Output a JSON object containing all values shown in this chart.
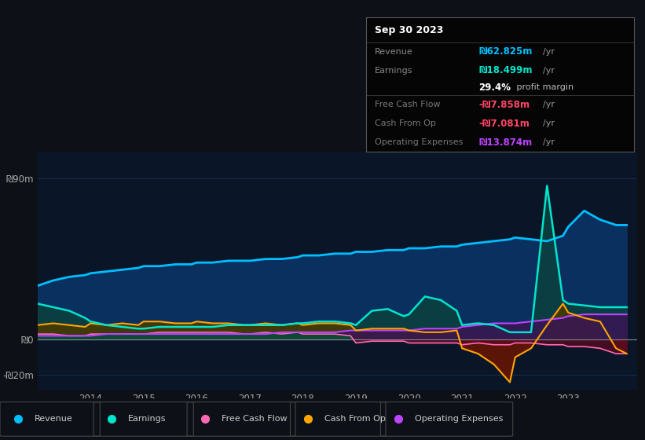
{
  "bg_color": "#0d1117",
  "chart_bg": "#0a1628",
  "title": "Sep 30 2023",
  "yticks_labels": [
    "₪90m",
    "₪0",
    "-₪20m"
  ],
  "ytick_values": [
    90,
    0,
    -20
  ],
  "ylim": [
    -28,
    105
  ],
  "xlim_start": 2013.0,
  "xlim_end": 2024.3,
  "xtick_labels": [
    "2014",
    "2015",
    "2016",
    "2017",
    "2018",
    "2019",
    "2020",
    "2021",
    "2022",
    "2023"
  ],
  "xtick_positions": [
    2014,
    2015,
    2016,
    2017,
    2018,
    2019,
    2020,
    2021,
    2022,
    2023
  ],
  "legend_items": [
    {
      "label": "Revenue",
      "color": "#00bfff"
    },
    {
      "label": "Earnings",
      "color": "#00e5cc"
    },
    {
      "label": "Free Cash Flow",
      "color": "#ff69b4"
    },
    {
      "label": "Cash From Op",
      "color": "#ffa500"
    },
    {
      "label": "Operating Expenses",
      "color": "#bb44ff"
    }
  ],
  "revenue_x": [
    2013.0,
    2013.3,
    2013.6,
    2013.9,
    2014.0,
    2014.3,
    2014.6,
    2014.9,
    2015.0,
    2015.3,
    2015.6,
    2015.9,
    2016.0,
    2016.3,
    2016.6,
    2016.9,
    2017.0,
    2017.3,
    2017.6,
    2017.9,
    2018.0,
    2018.3,
    2018.6,
    2018.9,
    2019.0,
    2019.3,
    2019.6,
    2019.9,
    2020.0,
    2020.3,
    2020.6,
    2020.9,
    2021.0,
    2021.3,
    2021.6,
    2021.9,
    2022.0,
    2022.3,
    2022.6,
    2022.9,
    2023.0,
    2023.3,
    2023.6,
    2023.9,
    2024.1
  ],
  "revenue_y": [
    30,
    33,
    35,
    36,
    37,
    38,
    39,
    40,
    41,
    41,
    42,
    42,
    43,
    43,
    44,
    44,
    44,
    45,
    45,
    46,
    47,
    47,
    48,
    48,
    49,
    49,
    50,
    50,
    51,
    51,
    52,
    52,
    53,
    54,
    55,
    56,
    57,
    56,
    55,
    58,
    63,
    72,
    67,
    64,
    64
  ],
  "earnings_x": [
    2013.0,
    2013.3,
    2013.6,
    2013.9,
    2014.0,
    2014.3,
    2014.6,
    2014.9,
    2015.0,
    2015.3,
    2015.6,
    2015.9,
    2016.0,
    2016.3,
    2016.6,
    2016.9,
    2017.0,
    2017.3,
    2017.6,
    2017.9,
    2018.0,
    2018.3,
    2018.6,
    2018.9,
    2019.0,
    2019.3,
    2019.6,
    2019.9,
    2020.0,
    2020.3,
    2020.6,
    2020.9,
    2021.0,
    2021.3,
    2021.6,
    2021.9,
    2022.0,
    2022.3,
    2022.6,
    2022.9,
    2023.0,
    2023.3,
    2023.6,
    2023.9,
    2024.1
  ],
  "earnings_y": [
    20,
    18,
    16,
    12,
    10,
    8,
    7,
    6,
    6,
    7,
    7,
    7,
    7,
    7,
    8,
    8,
    8,
    8,
    8,
    9,
    9,
    10,
    10,
    9,
    8,
    16,
    17,
    13,
    14,
    24,
    22,
    16,
    8,
    9,
    8,
    4,
    4,
    4,
    86,
    22,
    20,
    19,
    18,
    18,
    18
  ],
  "cashfromop_x": [
    2013.0,
    2013.3,
    2013.6,
    2013.9,
    2014.0,
    2014.3,
    2014.6,
    2014.9,
    2015.0,
    2015.3,
    2015.6,
    2015.9,
    2016.0,
    2016.3,
    2016.6,
    2016.9,
    2017.0,
    2017.3,
    2017.6,
    2017.9,
    2018.0,
    2018.3,
    2018.6,
    2018.9,
    2019.0,
    2019.3,
    2019.6,
    2019.9,
    2020.0,
    2020.3,
    2020.6,
    2020.9,
    2021.0,
    2021.3,
    2021.6,
    2021.9,
    2022.0,
    2022.3,
    2022.6,
    2022.9,
    2023.0,
    2023.3,
    2023.6,
    2023.9,
    2024.1
  ],
  "cashfromop_y": [
    8,
    9,
    8,
    7,
    9,
    8,
    9,
    8,
    10,
    10,
    9,
    9,
    10,
    9,
    9,
    8,
    8,
    9,
    8,
    9,
    8,
    9,
    9,
    8,
    5,
    6,
    6,
    6,
    5,
    4,
    4,
    5,
    -5,
    -8,
    -14,
    -24,
    -10,
    -5,
    8,
    20,
    15,
    12,
    10,
    -5,
    -8
  ],
  "opex_x": [
    2013.0,
    2013.3,
    2013.6,
    2013.9,
    2014.0,
    2014.3,
    2014.6,
    2014.9,
    2015.0,
    2015.3,
    2015.6,
    2015.9,
    2016.0,
    2016.3,
    2016.6,
    2016.9,
    2017.0,
    2017.3,
    2017.6,
    2017.9,
    2018.0,
    2018.3,
    2018.6,
    2018.9,
    2019.0,
    2019.3,
    2019.6,
    2019.9,
    2020.0,
    2020.3,
    2020.6,
    2020.9,
    2021.0,
    2021.3,
    2021.6,
    2021.9,
    2022.0,
    2022.3,
    2022.6,
    2022.9,
    2023.0,
    2023.3,
    2023.6,
    2023.9,
    2024.1
  ],
  "opex_y": [
    2,
    2,
    2,
    2,
    2,
    3,
    3,
    3,
    3,
    3,
    3,
    3,
    3,
    3,
    3,
    3,
    3,
    3,
    4,
    4,
    4,
    4,
    4,
    5,
    5,
    5,
    5,
    5,
    5,
    6,
    6,
    6,
    7,
    8,
    9,
    9,
    9,
    10,
    11,
    12,
    13,
    14,
    14,
    14,
    14
  ],
  "fcf_x": [
    2013.0,
    2013.3,
    2013.6,
    2013.9,
    2014.0,
    2014.3,
    2014.6,
    2014.9,
    2015.0,
    2015.3,
    2015.6,
    2015.9,
    2016.0,
    2016.3,
    2016.6,
    2016.9,
    2017.0,
    2017.3,
    2017.6,
    2017.9,
    2018.0,
    2018.3,
    2018.6,
    2018.9,
    2019.0,
    2019.3,
    2019.6,
    2019.9,
    2020.0,
    2020.3,
    2020.6,
    2020.9,
    2021.0,
    2021.3,
    2021.6,
    2021.9,
    2022.0,
    2022.3,
    2022.6,
    2022.9,
    2023.0,
    2023.3,
    2023.6,
    2023.9,
    2024.1
  ],
  "fcf_y": [
    3,
    3,
    2,
    2,
    3,
    3,
    3,
    3,
    3,
    4,
    4,
    4,
    4,
    4,
    4,
    3,
    3,
    4,
    3,
    4,
    3,
    3,
    3,
    2,
    -2,
    -1,
    -1,
    -1,
    -2,
    -2,
    -2,
    -2,
    -3,
    -2,
    -3,
    -3,
    -2,
    -2,
    -3,
    -3,
    -4,
    -4,
    -5,
    -8,
    -8
  ]
}
